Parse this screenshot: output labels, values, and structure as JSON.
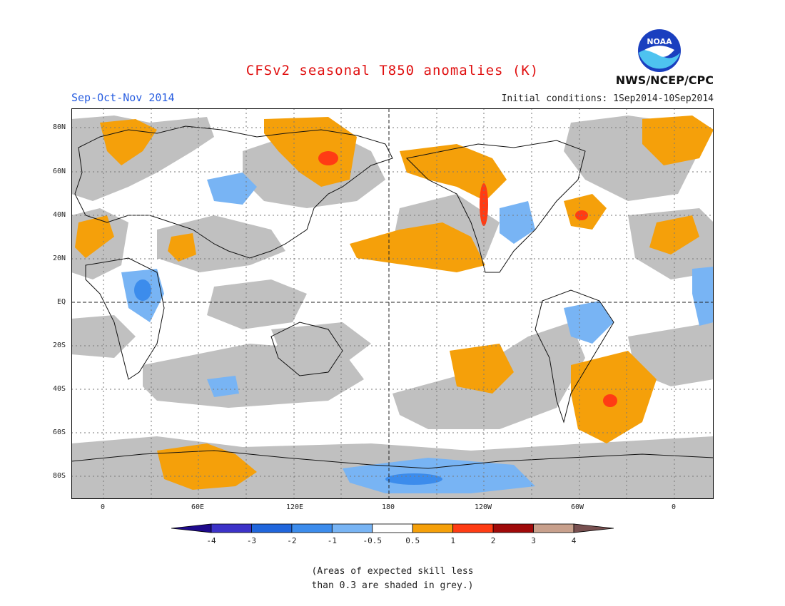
{
  "header": {
    "title": "CFSv2 seasonal T850 anomalies (K)",
    "season": "Sep-Oct-Nov 2014",
    "initial_conditions": "Initial conditions: 1Sep2014-10Sep2014",
    "agency": "NWS/NCEP/CPC",
    "logo_text": "NOAA"
  },
  "axes": {
    "lat_labels": [
      "80N",
      "60N",
      "40N",
      "20N",
      "EQ",
      "20S",
      "40S",
      "60S",
      "80S"
    ],
    "lon_labels": [
      "0",
      "60E",
      "120E",
      "180",
      "120W",
      "60W",
      "0"
    ]
  },
  "colorbar": {
    "labels": [
      "-4",
      "-3",
      "-2",
      "-1",
      "-0.5",
      "0.5",
      "1",
      "2",
      "3",
      "4"
    ],
    "colors": [
      "#1e0a8c",
      "#3c32c8",
      "#2066dc",
      "#3c8cec",
      "#78b4f4",
      "#ffffff",
      "#f5a00a",
      "#ff3c14",
      "#a00a0a",
      "#c8a08c",
      "#785050"
    ]
  },
  "note": {
    "line1": "(Areas of expected skill less",
    "line2": "than 0.3 are shaded in grey.)"
  },
  "colors": {
    "skill_grey": "#c0c0c0",
    "warm_anomaly": "#f5a00a",
    "strong_warm": "#ff3c14",
    "cool_anomaly": "#78b4f4",
    "stronger_cool": "#3c8cec"
  }
}
